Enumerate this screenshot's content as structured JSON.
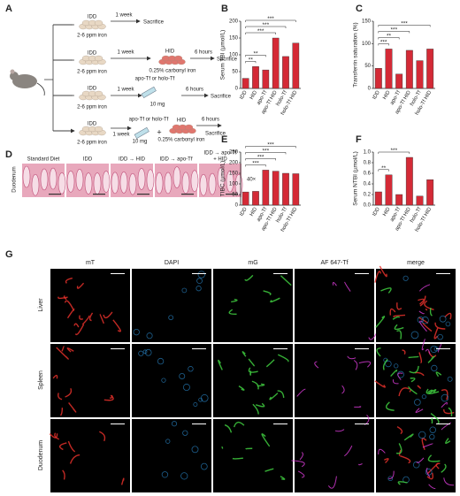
{
  "panel_labels": [
    "A",
    "B",
    "C",
    "D",
    "E",
    "F",
    "G"
  ],
  "schematic": {
    "rows": [
      {
        "diet": "IDD",
        "iron": "2-6 ppm iron",
        "duration": "1 week",
        "end": "Sacrifice"
      },
      {
        "diet": "IDD",
        "iron": "2-6 ppm iron",
        "duration": "1 week",
        "challenge": "HID",
        "challenge_iron": "0.25% carbonyl iron",
        "wait": "6 hours",
        "end": "Sacrifice"
      },
      {
        "diet": "IDD",
        "iron": "2-6 ppm iron",
        "duration": "1 week",
        "injection": "apo-Tf or holo-Tf",
        "dose": "10 mg",
        "wait": "6 hours",
        "end": "Sacrifice"
      },
      {
        "diet": "IDD",
        "iron": "2-6 ppm iron",
        "duration": "1 week",
        "injection": "apo-Tf or holo-Tf",
        "dose": "10 mg",
        "plus": "+",
        "challenge": "HID",
        "challenge_iron": "0.25% carbonyl iron",
        "wait": "6 hours",
        "end": "Sacrifice"
      }
    ]
  },
  "histology": {
    "tissue": "Duodenum",
    "magnification": "40×",
    "conditions": [
      [
        "Standard Diet"
      ],
      [
        "IDD"
      ],
      [
        "IDD → HID"
      ],
      [
        "IDD → apo-Tf"
      ],
      [
        "IDD → apo-Tf",
        "+ HID"
      ]
    ]
  },
  "microscopy": {
    "channels": [
      "mT",
      "DAPI",
      "mG",
      "AF 647-Tf",
      "merge"
    ],
    "tissues": [
      "Liver",
      "Spleen",
      "Duodenum"
    ]
  },
  "chart_data": [
    {
      "type": "bar",
      "y_label": "Serum TBI (µmol/L)",
      "categories": [
        "IDD",
        "HID",
        "apo-Tf",
        "apo-Tf HID",
        "holo-Tf",
        "holo-Tf HID"
      ],
      "values": [
        30,
        65,
        55,
        150,
        95,
        135
      ],
      "color": "#d42a36",
      "ylim": [
        0,
        200
      ],
      "yticks": [
        0,
        50,
        100,
        150,
        200
      ],
      "significance": [
        {
          "label": "**",
          "between": [
            "IDD",
            "HID"
          ]
        },
        {
          "label": "**",
          "between": [
            "IDD",
            "apo-Tf"
          ]
        },
        {
          "label": "***",
          "between": [
            "IDD",
            "apo-Tf HID"
          ]
        },
        {
          "label": "***",
          "between": [
            "IDD",
            "holo-Tf"
          ]
        },
        {
          "label": "***",
          "between": [
            "IDD",
            "holo-Tf HID"
          ]
        }
      ]
    },
    {
      "type": "bar",
      "y_label": "Transferrin saturation (%)",
      "categories": [
        "IDD",
        "HID",
        "apo-Tf",
        "apo-Tf HID",
        "holo-Tf",
        "holo-Tf HID"
      ],
      "values": [
        45,
        88,
        32,
        85,
        62,
        88
      ],
      "color": "#d42a36",
      "ylim": [
        0,
        150
      ],
      "yticks": [
        0,
        50,
        100,
        150
      ],
      "significance": [
        {
          "label": "***",
          "between": [
            "IDD",
            "HID"
          ]
        },
        {
          "label": "**",
          "between": [
            "IDD",
            "apo-Tf"
          ]
        },
        {
          "label": "***",
          "between": [
            "IDD",
            "apo-Tf HID"
          ]
        },
        {
          "label": "***",
          "between": [
            "IDD",
            "holo-Tf HID"
          ]
        }
      ]
    },
    {
      "type": "bar",
      "y_label": "TIBC (µmol/L)",
      "categories": [
        "IDD",
        "HID",
        "apo-Tf",
        "apo-Tf HID",
        "holo-Tf",
        "holo-Tf HID"
      ],
      "values": [
        62,
        65,
        165,
        160,
        150,
        148
      ],
      "color": "#d42a36",
      "ylim": [
        0,
        250
      ],
      "yticks": [
        0,
        50,
        100,
        150,
        200,
        250
      ],
      "significance": [
        {
          "label": "***",
          "between": [
            "IDD",
            "apo-Tf"
          ]
        },
        {
          "label": "***",
          "between": [
            "IDD",
            "apo-Tf HID"
          ]
        },
        {
          "label": "***",
          "between": [
            "IDD",
            "holo-Tf"
          ]
        },
        {
          "label": "***",
          "between": [
            "IDD",
            "holo-Tf HID"
          ]
        }
      ]
    },
    {
      "type": "bar",
      "y_label": "Serum NTBI (µmol/L)",
      "categories": [
        "IDD",
        "HID",
        "apo-Tf",
        "apo-Tf HID",
        "holo-Tf",
        "holo-Tf HID"
      ],
      "values": [
        0.25,
        0.57,
        0.2,
        0.9,
        0.17,
        0.48
      ],
      "color": "#d42a36",
      "ylim": [
        0,
        1
      ],
      "yticks": [
        {
          "value": 0,
          "label": "0.0"
        },
        0.2,
        0.4,
        0.6,
        0.8,
        {
          "value": 1,
          "label": "1.0"
        }
      ],
      "significance": [
        {
          "label": "**",
          "between": [
            "IDD",
            "HID"
          ]
        },
        {
          "label": "***",
          "between": [
            "IDD",
            "apo-Tf HID"
          ]
        }
      ]
    }
  ]
}
